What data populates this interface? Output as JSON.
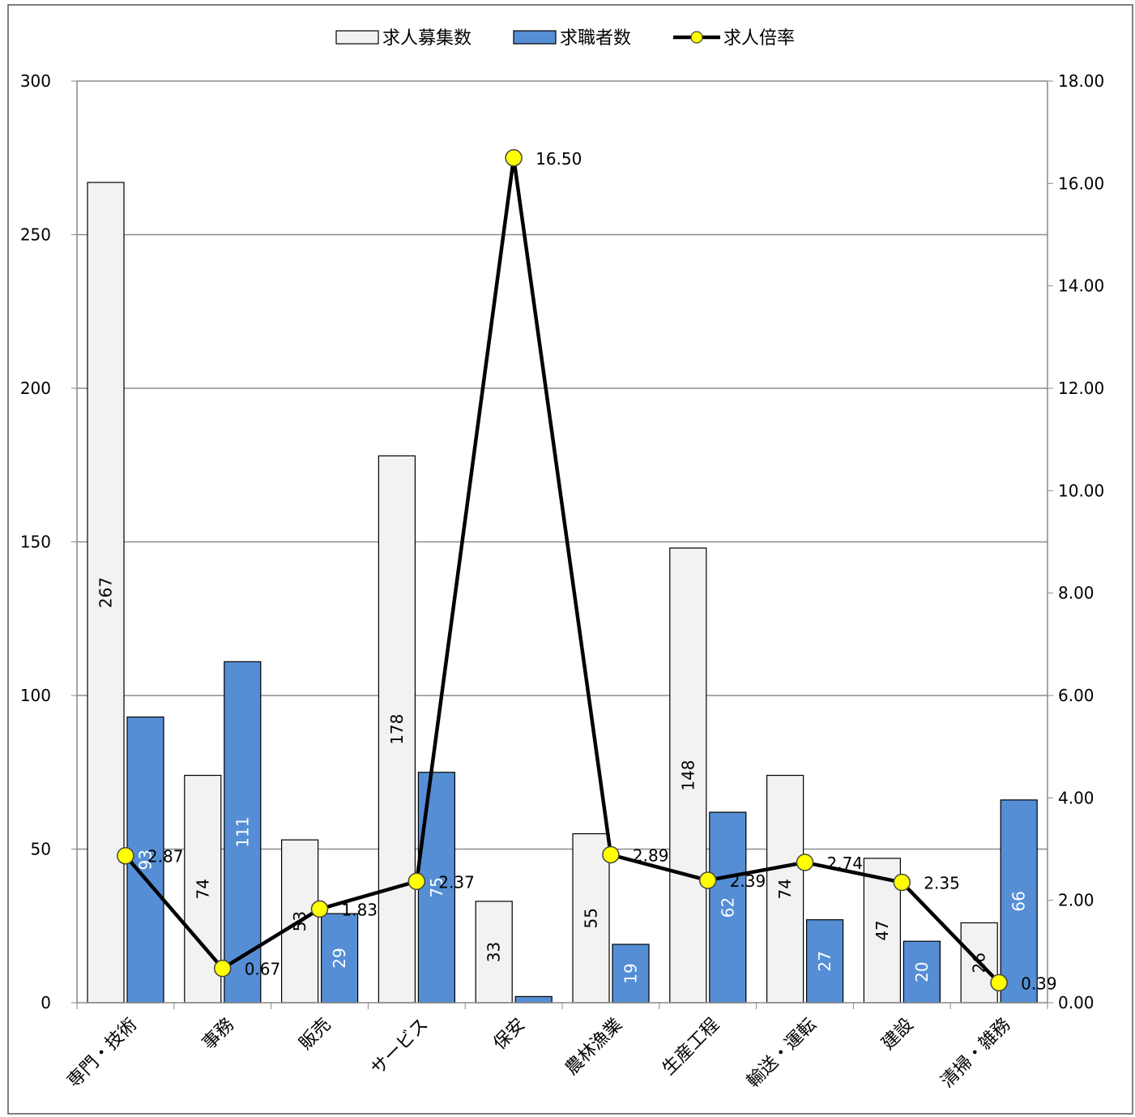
{
  "chart_data": {
    "type": "bar",
    "categories": [
      "専門・技術",
      "事務",
      "販売",
      "サービス",
      "保安",
      "農林漁業",
      "生産工程",
      "輸送・運転",
      "建設",
      "清掃・雑務"
    ],
    "series": [
      {
        "name": "求人募集数",
        "values": [
          267,
          74,
          53,
          178,
          33,
          55,
          148,
          74,
          47,
          26
        ],
        "color": "#f2f2f2",
        "labels": [
          "267",
          "74",
          "53",
          "178",
          "33",
          "55",
          "148",
          "74",
          "47",
          "26"
        ]
      },
      {
        "name": "求職者数",
        "values": [
          93,
          111,
          29,
          75,
          2,
          19,
          62,
          27,
          20,
          66
        ],
        "color": "#558ed5",
        "labels": [
          "93",
          "111",
          "29",
          "75",
          "",
          "19",
          "62",
          "27",
          "20",
          "66"
        ]
      },
      {
        "name": "求人倍率",
        "type": "line",
        "axis": "right",
        "values": [
          2.87,
          0.67,
          1.83,
          2.37,
          16.5,
          2.89,
          2.39,
          2.74,
          2.35,
          0.39
        ],
        "labels": [
          "2.87",
          "0.67",
          "1.83",
          "2.37",
          "16.50",
          "2.89",
          "2.39",
          "2.74",
          "2.35",
          "0.39"
        ],
        "color": "#000000",
        "marker_color": "#ffff00"
      }
    ],
    "y_left": {
      "min": 0,
      "max": 300,
      "ticks": [
        "0",
        "50",
        "100",
        "150",
        "200",
        "250",
        "300"
      ]
    },
    "y_right": {
      "min": 0,
      "max": 18,
      "ticks": [
        "0.00",
        "2.00",
        "4.00",
        "6.00",
        "8.00",
        "10.00",
        "12.00",
        "14.00",
        "16.00",
        "18.00"
      ]
    },
    "grid": true,
    "legend_position": "top-center"
  }
}
